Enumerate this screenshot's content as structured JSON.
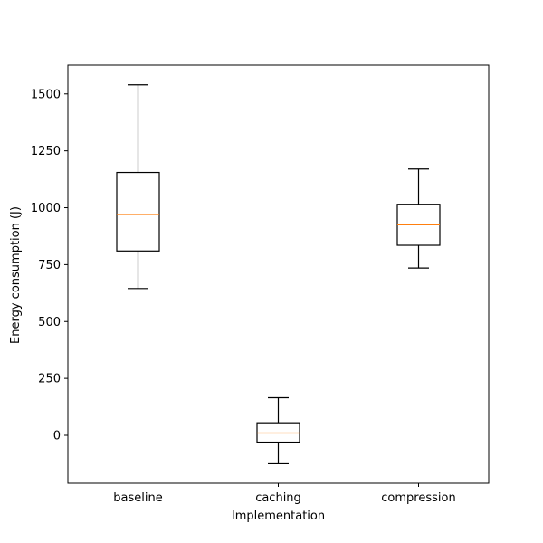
{
  "chart_data": {
    "type": "box",
    "xlabel": "Implementation",
    "ylabel": "Energy consumption (J)",
    "ylim": [
      -220,
      1625
    ],
    "yticks": [
      0,
      250,
      500,
      750,
      1000,
      1250,
      1500
    ],
    "grid": false,
    "categories": [
      "baseline",
      "caching",
      "compression"
    ],
    "boxes": [
      {
        "name": "baseline",
        "whisker_low": 645,
        "q1": 810,
        "median": 970,
        "q3": 1155,
        "whisker_high": 1540
      },
      {
        "name": "caching",
        "whisker_low": -125,
        "q1": -30,
        "median": 10,
        "q3": 55,
        "whisker_high": 165
      },
      {
        "name": "compression",
        "whisker_low": 735,
        "q1": 835,
        "median": 925,
        "q3": 1015,
        "whisker_high": 1170
      }
    ],
    "colors": {
      "box": "#000000",
      "median": "#ff7f0e"
    }
  }
}
